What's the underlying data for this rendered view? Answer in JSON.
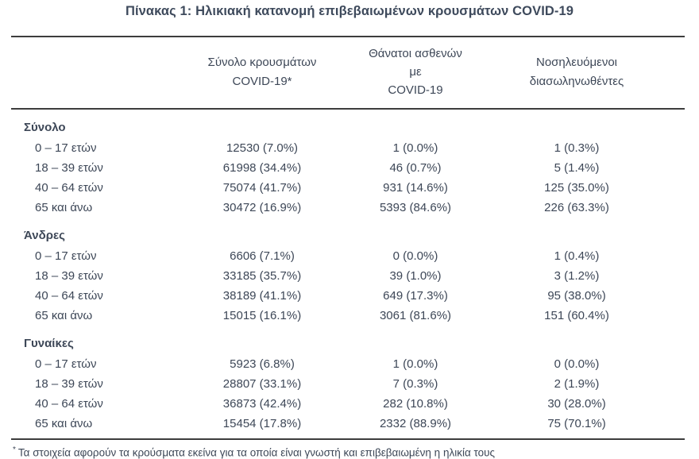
{
  "title": "Πίνακας 1: Ηλικιακή κατανομή επιβεβαιωμένων κρουσμάτων COVID-19",
  "colors": {
    "text": "#3d4757",
    "title_text": "#3e4a5c",
    "rule": "#3d3d3d",
    "background": "#ffffff"
  },
  "table": {
    "headers": [
      {
        "line1": "Σύνολο κρουσμάτων",
        "line2": "COVID-19*"
      },
      {
        "line1": "Θάνατοι ασθενών με",
        "line2": "COVID-19"
      },
      {
        "line1": "Νοσηλευόμενοι",
        "line2": "διασωληνωθέντες"
      }
    ],
    "sections": [
      {
        "label": "Σύνολο",
        "rows": [
          {
            "label": "0 – 17 ετών",
            "cases": "12530 (7.0%)",
            "deaths": "1 (0.0%)",
            "intubated": "1 (0.3%)"
          },
          {
            "label": "18 – 39 ετών",
            "cases": "61998 (34.4%)",
            "deaths": "46 (0.7%)",
            "intubated": "5 (1.4%)"
          },
          {
            "label": "40 – 64 ετών",
            "cases": "75074 (41.7%)",
            "deaths": "931 (14.6%)",
            "intubated": "125 (35.0%)"
          },
          {
            "label": "65 και άνω",
            "cases": "30472 (16.9%)",
            "deaths": "5393 (84.6%)",
            "intubated": "226 (63.3%)"
          }
        ]
      },
      {
        "label": "Άνδρες",
        "rows": [
          {
            "label": "0 – 17 ετών",
            "cases": "6606 (7.1%)",
            "deaths": "0 (0.0%)",
            "intubated": "1 (0.4%)"
          },
          {
            "label": "18 – 39 ετών",
            "cases": "33185 (35.7%)",
            "deaths": "39 (1.0%)",
            "intubated": "3 (1.2%)"
          },
          {
            "label": "40 – 64 ετών",
            "cases": "38189 (41.1%)",
            "deaths": "649 (17.3%)",
            "intubated": "95 (38.0%)"
          },
          {
            "label": "65 και άνω",
            "cases": "15015 (16.1%)",
            "deaths": "3061 (81.6%)",
            "intubated": "151 (60.4%)"
          }
        ]
      },
      {
        "label": "Γυναίκες",
        "rows": [
          {
            "label": "0 – 17 ετών",
            "cases": "5923 (6.8%)",
            "deaths": "1 (0.0%)",
            "intubated": "0 (0.0%)"
          },
          {
            "label": "18 – 39 ετών",
            "cases": "28807 (33.1%)",
            "deaths": "7 (0.3%)",
            "intubated": "2 (1.9%)"
          },
          {
            "label": "40 – 64 ετών",
            "cases": "36873 (42.4%)",
            "deaths": "282 (10.8%)",
            "intubated": "30 (28.0%)"
          },
          {
            "label": "65 και άνω",
            "cases": "15454 (17.8%)",
            "deaths": "2332 (88.9%)",
            "intubated": "75 (70.1%)"
          }
        ]
      }
    ]
  },
  "footnote": {
    "marker": "*",
    "text": "Τα στοιχεία αφορούν τα κρούσματα εκείνα για τα οποία είναι γνωστή και επιβεβαιωμένη η ηλικία τους"
  }
}
